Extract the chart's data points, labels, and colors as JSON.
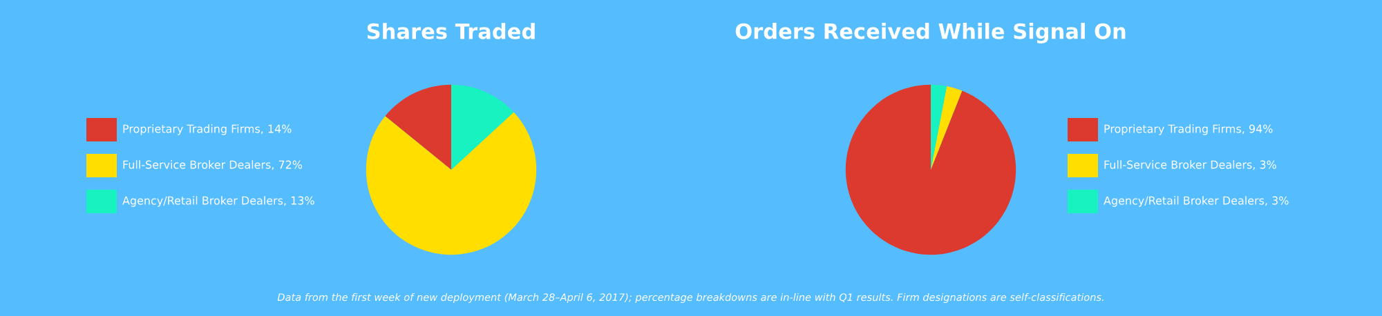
{
  "chart_data": [
    {
      "type": "pie",
      "title": "Shares Traded",
      "legend": "left",
      "categories": [
        "Proprietary Trading Firms, 14%",
        "Full-Service Broker Dealers, 72%",
        "Agency/Retail Broker Dealers, 13%"
      ],
      "values": [
        14,
        72,
        13
      ],
      "colors": [
        "#dc3a2e",
        "#ffde00",
        "#17f2c0"
      ],
      "annotations": [
        "Data from the first week of new deployment (March 28–April 6, 2017); percentage breakdowns are in-line with Q1 results. Firm designations are self-classifications."
      ]
    },
    {
      "type": "pie",
      "title": "Orders Received While Signal On",
      "legend": "right",
      "categories": [
        "Proprietary Trading Firms, 94%",
        "Full-Service Broker Dealers, 3%",
        "Agency/Retail Broker Dealers, 3%"
      ],
      "values": [
        94,
        3,
        3
      ],
      "colors": [
        "#dc3a2e",
        "#ffde00",
        "#17f2c0"
      ]
    }
  ]
}
